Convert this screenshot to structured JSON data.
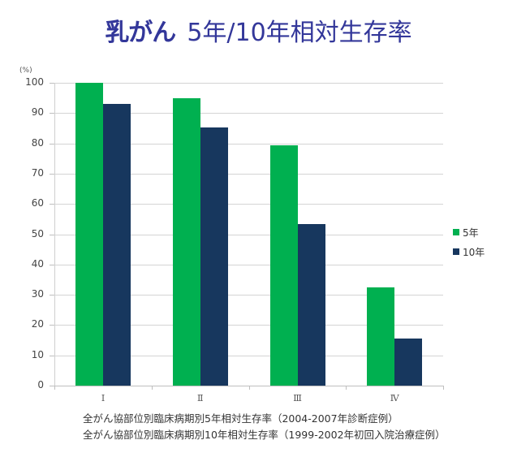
{
  "title": {
    "strong": "乳がん",
    "rest": "5年/10年相対生存率"
  },
  "y_unit": "(%)",
  "legend": [
    {
      "label": "5年",
      "color": "#00b050"
    },
    {
      "label": "10年",
      "color": "#17375e"
    }
  ],
  "source_notes": [
    "全がん協部位別臨床病期別5年相対生存率（2004-2007年診断症例）",
    "全がん協部位別臨床病期別10年相対生存率（1999-2002年初回入院治療症例）"
  ],
  "chart_data": {
    "type": "bar",
    "title": "乳がん 5年/10年相対生存率",
    "xlabel": "",
    "ylabel": "(%)",
    "categories": [
      "Ⅰ",
      "Ⅱ",
      "Ⅲ",
      "Ⅳ"
    ],
    "series": [
      {
        "name": "5年",
        "color": "#00b050",
        "values": [
          100.0,
          94.9,
          79.3,
          32.4
        ]
      },
      {
        "name": "10年",
        "color": "#17375e",
        "values": [
          93.1,
          85.2,
          53.4,
          15.5
        ]
      }
    ],
    "ylim": [
      0,
      100
    ],
    "yticks": [
      0,
      10,
      20,
      30,
      40,
      50,
      60,
      70,
      80,
      90,
      100
    ],
    "grid": true,
    "legend_position": "right"
  }
}
